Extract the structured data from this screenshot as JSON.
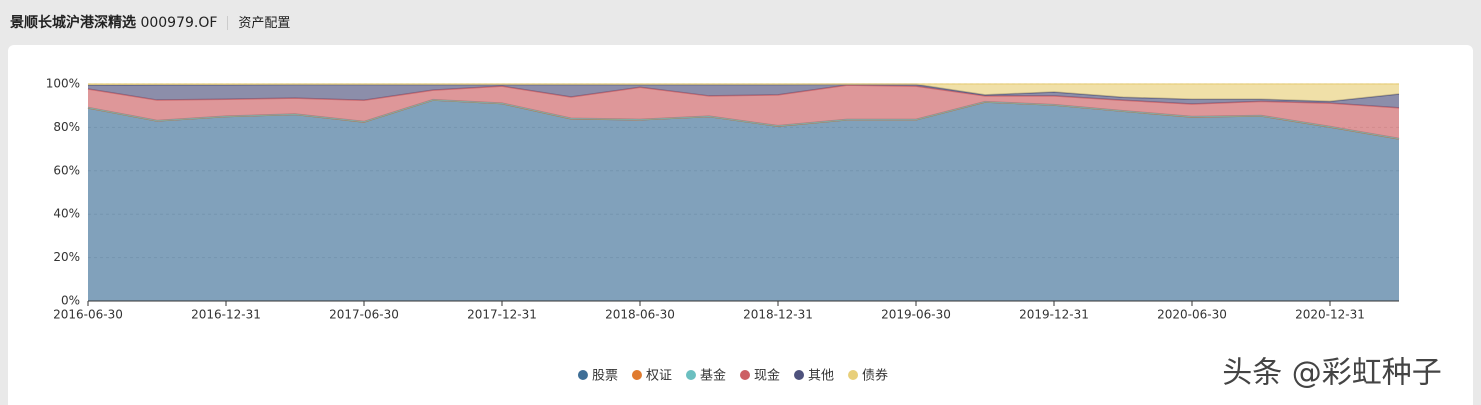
{
  "header": {
    "title": "景顺长城沪港深精选",
    "code": "000979.OF",
    "tab": "资产配置"
  },
  "chart_data": {
    "type": "stacked-area",
    "categories": [
      "2016-06-30",
      null,
      "2016-12-31",
      null,
      "2017-06-30",
      null,
      "2017-12-31",
      null,
      "2018-06-30",
      null,
      "2018-12-31",
      null,
      "2019-06-30",
      null,
      "2019-12-31",
      null,
      "2020-06-30",
      null,
      "2020-12-31",
      null
    ],
    "series": [
      {
        "name": "股票",
        "color": "#3e6e96",
        "values": [
          89,
          83,
          85,
          86,
          82.5,
          92.6,
          91,
          84,
          83.5,
          85,
          80.6,
          83.5,
          83.5,
          91.7,
          90.3,
          87.5,
          84.8,
          85.3,
          80.2,
          74.7
        ]
      },
      {
        "name": "权证",
        "color": "#e07b2f",
        "values": [
          0,
          0,
          0,
          0,
          0,
          0,
          0,
          0,
          0,
          0,
          0,
          0,
          0,
          0,
          0,
          0,
          0,
          0,
          0,
          0
        ]
      },
      {
        "name": "基金",
        "color": "#6bbfc0",
        "values": [
          0.2,
          0.2,
          0.2,
          0.2,
          0.2,
          0.2,
          0.2,
          0.2,
          0.2,
          0.2,
          0.2,
          0.2,
          0.2,
          0.2,
          0.2,
          0.2,
          0.2,
          0.2,
          0.2,
          0.2
        ]
      },
      {
        "name": "现金",
        "color": "#cc5f63",
        "values": [
          8.5,
          9.4,
          7.8,
          7.3,
          9.8,
          4.4,
          7.8,
          9.8,
          14.8,
          9.3,
          14.2,
          15.8,
          15.3,
          2.6,
          4,
          4.8,
          5.8,
          6.5,
          10.8,
          14.1
        ]
      },
      {
        "name": "其他",
        "color": "#4e527d",
        "values": [
          1.8,
          7,
          6.6,
          6.2,
          7.2,
          2.5,
          0.7,
          5.7,
          1.2,
          5.2,
          4.7,
          0.3,
          0.8,
          0.5,
          1.8,
          1.4,
          2.2,
          1,
          0.8,
          6.4
        ]
      },
      {
        "name": "债券",
        "color": "#e8cf7a",
        "values": [
          0.5,
          0.4,
          0.4,
          0.3,
          0.3,
          0.3,
          0.3,
          0.3,
          0.3,
          0.3,
          0.3,
          0.2,
          0.2,
          5,
          3.7,
          6.1,
          7,
          7,
          8,
          4.6
        ]
      }
    ],
    "ylim": [
      0,
      100
    ],
    "yticks": [
      {
        "value": 0,
        "label": "0%"
      },
      {
        "value": 20,
        "label": "20%"
      },
      {
        "value": 40,
        "label": "40%"
      },
      {
        "value": 60,
        "label": "60%"
      },
      {
        "value": 80,
        "label": "80%"
      },
      {
        "value": 100,
        "label": "100%"
      }
    ],
    "grid": true,
    "legend": "bottom"
  },
  "watermark": "头条 @彩虹种子"
}
